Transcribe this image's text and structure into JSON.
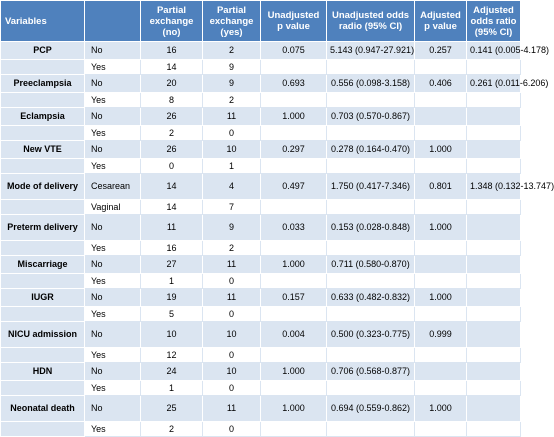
{
  "headers": [
    "Variables",
    "",
    "Partial exchange (no)",
    "Partial exchange (yes)",
    "Unadjusted p value",
    "Unadjusted odds radio (95% CI)",
    "Adjusted p value",
    "Adjusted odds ratio (95% CI)"
  ],
  "rows": [
    {
      "variable": "PCP",
      "level": "No",
      "pe_no": "16",
      "pe_yes": "2",
      "unadj_p": "0.075",
      "unadj_or": "5.143 (0.947-27.921)",
      "adj_p": "0.257",
      "adj_or": "0.141 (0.005-4.178)"
    },
    {
      "variable": "",
      "level": "Yes",
      "pe_no": "14",
      "pe_yes": "9",
      "unadj_p": "",
      "unadj_or": "",
      "adj_p": "",
      "adj_or": ""
    },
    {
      "variable": "Preeclampsia",
      "level": "No",
      "pe_no": "20",
      "pe_yes": "9",
      "unadj_p": "0.693",
      "unadj_or": "0.556 (0.098-3.158)",
      "adj_p": "0.406",
      "adj_or": "0.261 (0.011-6.206)"
    },
    {
      "variable": "",
      "level": "Yes",
      "pe_no": "8",
      "pe_yes": "2",
      "unadj_p": "",
      "unadj_or": "",
      "adj_p": "",
      "adj_or": ""
    },
    {
      "variable": "Eclampsia",
      "level": "No",
      "pe_no": "26",
      "pe_yes": "11",
      "unadj_p": "1.000",
      "unadj_or": "0.703 (0.570-0.867)",
      "adj_p": "",
      "adj_or": ""
    },
    {
      "variable": "",
      "level": "Yes",
      "pe_no": "2",
      "pe_yes": "0",
      "unadj_p": "",
      "unadj_or": "",
      "adj_p": "",
      "adj_or": ""
    },
    {
      "variable": "New VTE",
      "level": "No",
      "pe_no": "26",
      "pe_yes": "10",
      "unadj_p": "0.297",
      "unadj_or": "0.278 (0.164-0.470)",
      "adj_p": "1.000",
      "adj_or": ""
    },
    {
      "variable": "",
      "level": "Yes",
      "pe_no": "0",
      "pe_yes": "1",
      "unadj_p": "",
      "unadj_or": "",
      "adj_p": "",
      "adj_or": ""
    },
    {
      "variable": "Mode of delivery",
      "level": "Cesarean",
      "pe_no": "14",
      "pe_yes": "4",
      "unadj_p": "0.497",
      "unadj_or": "1.750 (0.417-7.346)",
      "adj_p": "0.801",
      "adj_or": "1.348 (0.132-13.747)"
    },
    {
      "variable": "",
      "level": "Vaginal",
      "pe_no": "14",
      "pe_yes": "7",
      "unadj_p": "",
      "unadj_or": "",
      "adj_p": "",
      "adj_or": ""
    },
    {
      "variable": "Preterm delivery",
      "level": "No",
      "pe_no": "11",
      "pe_yes": "9",
      "unadj_p": "0.033",
      "unadj_or": "0.153 (0.028-0.848)",
      "adj_p": "1.000",
      "adj_or": ""
    },
    {
      "variable": "",
      "level": "Yes",
      "pe_no": "16",
      "pe_yes": "2",
      "unadj_p": "",
      "unadj_or": "",
      "adj_p": "",
      "adj_or": ""
    },
    {
      "variable": "Miscarriage",
      "level": "No",
      "pe_no": "27",
      "pe_yes": "11",
      "unadj_p": "1.000",
      "unadj_or": "0.711 (0.580-0.870)",
      "adj_p": "",
      "adj_or": ""
    },
    {
      "variable": "",
      "level": "Yes",
      "pe_no": "1",
      "pe_yes": "0",
      "unadj_p": "",
      "unadj_or": "",
      "adj_p": "",
      "adj_or": ""
    },
    {
      "variable": "IUGR",
      "level": "No",
      "pe_no": "19",
      "pe_yes": "11",
      "unadj_p": "0.157",
      "unadj_or": "0.633 (0.482-0.832)",
      "adj_p": "1.000",
      "adj_or": ""
    },
    {
      "variable": "",
      "level": "Yes",
      "pe_no": "5",
      "pe_yes": "0",
      "unadj_p": "",
      "unadj_or": "",
      "adj_p": "",
      "adj_or": ""
    },
    {
      "variable": "NICU admission",
      "level": "No",
      "pe_no": "10",
      "pe_yes": "10",
      "unadj_p": "0.004",
      "unadj_or": "0.500 (0.323-0.775)",
      "adj_p": "0.999",
      "adj_or": ""
    },
    {
      "variable": "",
      "level": "Yes",
      "pe_no": "12",
      "pe_yes": "0",
      "unadj_p": "",
      "unadj_or": "",
      "adj_p": "",
      "adj_or": ""
    },
    {
      "variable": "HDN",
      "level": "No",
      "pe_no": "24",
      "pe_yes": "10",
      "unadj_p": "1.000",
      "unadj_or": "0.706 (0.568-0.877)",
      "adj_p": "",
      "adj_or": ""
    },
    {
      "variable": "",
      "level": "Yes",
      "pe_no": "1",
      "pe_yes": "0",
      "unadj_p": "",
      "unadj_or": "",
      "adj_p": "",
      "adj_or": ""
    },
    {
      "variable": "Neonatal death",
      "level": "No",
      "pe_no": "25",
      "pe_yes": "11",
      "unadj_p": "1.000",
      "unadj_or": "0.694 (0.559-0.862)",
      "adj_p": "1.000",
      "adj_or": ""
    },
    {
      "variable": "",
      "level": "Yes",
      "pe_no": "2",
      "pe_yes": "0",
      "unadj_p": "",
      "unadj_or": "",
      "adj_p": "",
      "adj_or": ""
    }
  ]
}
